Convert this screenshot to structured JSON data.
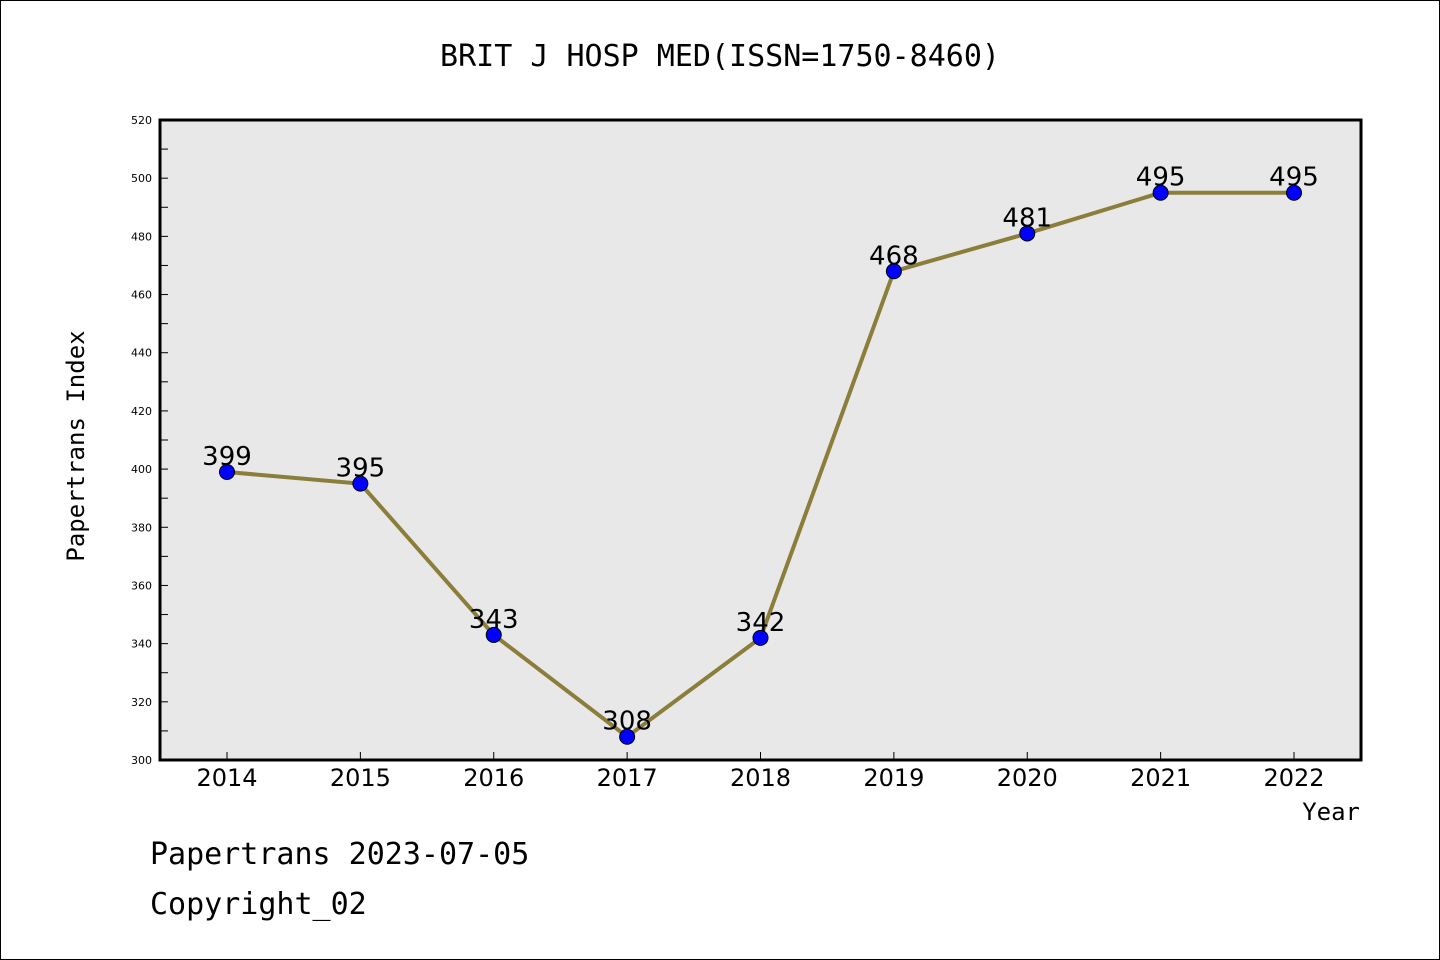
{
  "chart_data": {
    "type": "line",
    "title": "BRIT J HOSP MED(ISSN=1750-8460)",
    "xlabel": "Year",
    "ylabel": "Papertrans Index",
    "x": [
      "2014",
      "2015",
      "2016",
      "2017",
      "2018",
      "2019",
      "2020",
      "2021",
      "2022"
    ],
    "series": [
      {
        "values": [
          399,
          395,
          343,
          308,
          342,
          468,
          481,
          495,
          495
        ]
      }
    ],
    "ylim": [
      300,
      520
    ],
    "yticks": [
      "300",
      "320",
      "340",
      "360",
      "380",
      "400",
      "420",
      "440",
      "460",
      "480",
      "500",
      "520"
    ],
    "data_labels": [
      "399",
      "395",
      "343",
      "308",
      "342",
      "468",
      "481",
      "495",
      "495"
    ],
    "grid": false,
    "legend": "none",
    "colors": {
      "line": "#8b7d3a",
      "marker": "#0000ff",
      "plot_bg": "#e8e8e8"
    }
  },
  "footer": {
    "line1": "Papertrans 2023-07-05",
    "line2": "Copyright_02"
  }
}
